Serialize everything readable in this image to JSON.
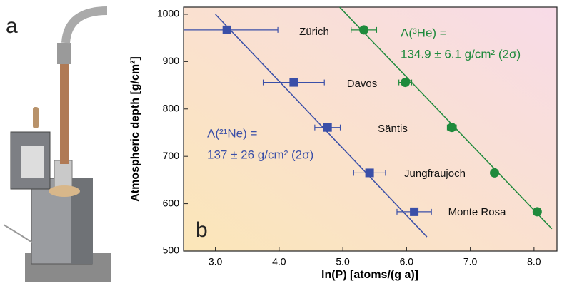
{
  "panel_a": {
    "label": "a"
  },
  "chart_data": {
    "type": "scatter",
    "panel_label": "b",
    "x_label": "ln(P) [atoms/(g a)]",
    "y_label": "Atmospheric depth [g/cm²]",
    "xlim": [
      2.5,
      8.36
    ],
    "ylim": [
      500,
      1015
    ],
    "xticks": [
      {
        "value": 3,
        "label": "3.0"
      },
      {
        "value": 4,
        "label": "4.0"
      },
      {
        "value": 5,
        "label": "5.0"
      },
      {
        "value": 6,
        "label": "6.0"
      },
      {
        "value": 7,
        "label": "7.0"
      },
      {
        "value": 8,
        "label": "8.0"
      }
    ],
    "yticks": [
      500,
      600,
      700,
      800,
      900,
      1000
    ],
    "sites": [
      "Zürich",
      "Davos",
      "Säntis",
      "Jungfraujoch",
      "Monte Rosa"
    ],
    "series": [
      {
        "marker": "square",
        "color": "#3a4fa8",
        "x": [
          3.18,
          4.23,
          4.76,
          5.42,
          6.12
        ],
        "y": [
          967,
          856,
          761,
          665,
          583
        ],
        "xerr": [
          0.8,
          0.48,
          0.2,
          0.25,
          0.27
        ],
        "fit": {
          "x": [
            3.0,
            6.32
          ],
          "y": [
            1000,
            530
          ]
        },
        "annotation": [
          "Λ(²¹Ne) =",
          "137 ± 26 g/cm² (2σ)"
        ]
      },
      {
        "marker": "circle",
        "color": "#1f8a3c",
        "x": [
          5.33,
          5.98,
          6.71,
          7.38,
          8.05
        ],
        "y": [
          967,
          856,
          761,
          665,
          583
        ],
        "xerr": [
          0.2,
          0.1,
          0.07,
          0.05,
          0.05
        ],
        "fit": {
          "x": [
            4.95,
            8.28
          ],
          "y": [
            1015,
            547
          ]
        },
        "annotation": [
          "Λ(³He) =",
          "134.9 ± 6.1 g/cm² (2σ)"
        ]
      }
    ]
  }
}
